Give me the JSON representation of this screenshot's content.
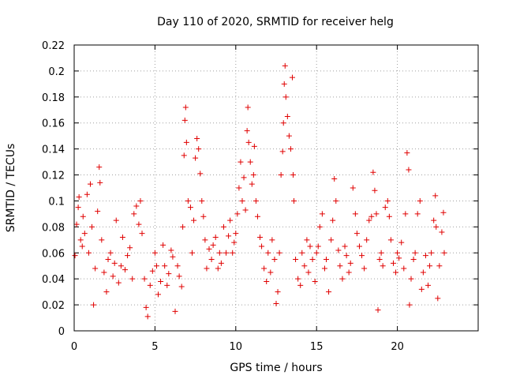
{
  "chart_data": {
    "type": "scatter",
    "title": "Day 110 of 2020, SRMTID for receiver helg",
    "xlabel": "GPS time / hours",
    "ylabel": "SRMTID / TECUs",
    "xlim": [
      0,
      25
    ],
    "ylim": [
      0,
      0.22
    ],
    "x_ticks": [
      0,
      5,
      10,
      15,
      20
    ],
    "x_tick_labels": [
      "0",
      "5",
      "10",
      "15",
      "20"
    ],
    "y_ticks": [
      0,
      0.02,
      0.04,
      0.06,
      0.08,
      0.1,
      0.12,
      0.14,
      0.16,
      0.18,
      0.2,
      0.22
    ],
    "y_tick_labels": [
      "0",
      "0.02",
      "0.04",
      "0.06",
      "0.08",
      "0.1",
      "0.12",
      "0.14",
      "0.16",
      "0.18",
      "0.2",
      "0.22"
    ],
    "grid": true,
    "marker": "+",
    "color": "#e00000",
    "series": [
      {
        "name": "SRMTID",
        "points": [
          [
            0.05,
            0.058
          ],
          [
            0.15,
            0.082
          ],
          [
            0.25,
            0.095
          ],
          [
            0.3,
            0.103
          ],
          [
            0.4,
            0.07
          ],
          [
            0.5,
            0.065
          ],
          [
            0.55,
            0.088
          ],
          [
            0.65,
            0.075
          ],
          [
            0.8,
            0.105
          ],
          [
            0.9,
            0.06
          ],
          [
            1.0,
            0.113
          ],
          [
            1.1,
            0.08
          ],
          [
            1.2,
            0.02
          ],
          [
            1.3,
            0.048
          ],
          [
            1.45,
            0.092
          ],
          [
            1.55,
            0.126
          ],
          [
            1.6,
            0.114
          ],
          [
            1.7,
            0.07
          ],
          [
            1.85,
            0.045
          ],
          [
            2.0,
            0.03
          ],
          [
            2.1,
            0.055
          ],
          [
            2.25,
            0.06
          ],
          [
            2.4,
            0.042
          ],
          [
            2.5,
            0.052
          ],
          [
            2.6,
            0.085
          ],
          [
            2.75,
            0.037
          ],
          [
            2.9,
            0.05
          ],
          [
            3.0,
            0.072
          ],
          [
            3.15,
            0.047
          ],
          [
            3.3,
            0.058
          ],
          [
            3.45,
            0.064
          ],
          [
            3.6,
            0.04
          ],
          [
            3.7,
            0.09
          ],
          [
            3.85,
            0.096
          ],
          [
            4.0,
            0.082
          ],
          [
            4.1,
            0.1
          ],
          [
            4.2,
            0.075
          ],
          [
            4.35,
            0.04
          ],
          [
            4.45,
            0.018
          ],
          [
            4.55,
            0.011
          ],
          [
            4.7,
            0.035
          ],
          [
            4.85,
            0.046
          ],
          [
            5.0,
            0.06
          ],
          [
            5.1,
            0.05
          ],
          [
            5.2,
            0.028
          ],
          [
            5.35,
            0.038
          ],
          [
            5.5,
            0.066
          ],
          [
            5.6,
            0.05
          ],
          [
            5.75,
            0.035
          ],
          [
            5.85,
            0.044
          ],
          [
            6.0,
            0.062
          ],
          [
            6.1,
            0.057
          ],
          [
            6.25,
            0.015
          ],
          [
            6.4,
            0.05
          ],
          [
            6.5,
            0.042
          ],
          [
            6.65,
            0.034
          ],
          [
            6.72,
            0.08
          ],
          [
            6.8,
            0.135
          ],
          [
            6.85,
            0.162
          ],
          [
            6.9,
            0.172
          ],
          [
            6.95,
            0.145
          ],
          [
            7.05,
            0.1
          ],
          [
            7.2,
            0.095
          ],
          [
            7.3,
            0.06
          ],
          [
            7.4,
            0.085
          ],
          [
            7.5,
            0.133
          ],
          [
            7.6,
            0.148
          ],
          [
            7.7,
            0.14
          ],
          [
            7.8,
            0.121
          ],
          [
            7.9,
            0.1
          ],
          [
            8.0,
            0.088
          ],
          [
            8.1,
            0.07
          ],
          [
            8.2,
            0.048
          ],
          [
            8.35,
            0.063
          ],
          [
            8.5,
            0.055
          ],
          [
            8.6,
            0.066
          ],
          [
            8.75,
            0.072
          ],
          [
            8.9,
            0.048
          ],
          [
            9.0,
            0.06
          ],
          [
            9.1,
            0.052
          ],
          [
            9.25,
            0.08
          ],
          [
            9.4,
            0.06
          ],
          [
            9.55,
            0.073
          ],
          [
            9.65,
            0.085
          ],
          [
            9.8,
            0.06
          ],
          [
            9.9,
            0.068
          ],
          [
            10.0,
            0.075
          ],
          [
            10.1,
            0.09
          ],
          [
            10.2,
            0.11
          ],
          [
            10.3,
            0.13
          ],
          [
            10.4,
            0.1
          ],
          [
            10.5,
            0.118
          ],
          [
            10.6,
            0.093
          ],
          [
            10.7,
            0.154
          ],
          [
            10.75,
            0.172
          ],
          [
            10.8,
            0.145
          ],
          [
            10.9,
            0.13
          ],
          [
            11.0,
            0.113
          ],
          [
            11.1,
            0.12
          ],
          [
            11.15,
            0.142
          ],
          [
            11.25,
            0.1
          ],
          [
            11.35,
            0.088
          ],
          [
            11.5,
            0.072
          ],
          [
            11.6,
            0.065
          ],
          [
            11.75,
            0.048
          ],
          [
            11.9,
            0.038
          ],
          [
            12.0,
            0.06
          ],
          [
            12.15,
            0.045
          ],
          [
            12.25,
            0.07
          ],
          [
            12.4,
            0.055
          ],
          [
            12.5,
            0.021
          ],
          [
            12.6,
            0.03
          ],
          [
            12.7,
            0.06
          ],
          [
            12.8,
            0.12
          ],
          [
            12.9,
            0.138
          ],
          [
            12.95,
            0.16
          ],
          [
            13.0,
            0.19
          ],
          [
            13.05,
            0.204
          ],
          [
            13.1,
            0.18
          ],
          [
            13.2,
            0.165
          ],
          [
            13.3,
            0.15
          ],
          [
            13.4,
            0.14
          ],
          [
            13.5,
            0.195
          ],
          [
            13.55,
            0.12
          ],
          [
            13.6,
            0.1
          ],
          [
            13.7,
            0.055
          ],
          [
            13.85,
            0.04
          ],
          [
            14.0,
            0.035
          ],
          [
            14.1,
            0.06
          ],
          [
            14.25,
            0.05
          ],
          [
            14.4,
            0.07
          ],
          [
            14.5,
            0.045
          ],
          [
            14.6,
            0.065
          ],
          [
            14.75,
            0.055
          ],
          [
            14.9,
            0.038
          ],
          [
            15.0,
            0.06
          ],
          [
            15.1,
            0.065
          ],
          [
            15.2,
            0.08
          ],
          [
            15.35,
            0.09
          ],
          [
            15.5,
            0.048
          ],
          [
            15.6,
            0.055
          ],
          [
            15.75,
            0.03
          ],
          [
            15.9,
            0.07
          ],
          [
            16.0,
            0.085
          ],
          [
            16.1,
            0.117
          ],
          [
            16.2,
            0.1
          ],
          [
            16.35,
            0.062
          ],
          [
            16.45,
            0.05
          ],
          [
            16.6,
            0.04
          ],
          [
            16.75,
            0.065
          ],
          [
            16.85,
            0.058
          ],
          [
            17.0,
            0.045
          ],
          [
            17.1,
            0.052
          ],
          [
            17.25,
            0.11
          ],
          [
            17.4,
            0.09
          ],
          [
            17.5,
            0.075
          ],
          [
            17.65,
            0.065
          ],
          [
            17.8,
            0.058
          ],
          [
            17.95,
            0.048
          ],
          [
            18.1,
            0.07
          ],
          [
            18.25,
            0.085
          ],
          [
            18.4,
            0.088
          ],
          [
            18.5,
            0.122
          ],
          [
            18.6,
            0.108
          ],
          [
            18.7,
            0.09
          ],
          [
            18.8,
            0.016
          ],
          [
            18.9,
            0.055
          ],
          [
            19.0,
            0.06
          ],
          [
            19.1,
            0.05
          ],
          [
            19.25,
            0.095
          ],
          [
            19.4,
            0.1
          ],
          [
            19.5,
            0.088
          ],
          [
            19.6,
            0.07
          ],
          [
            19.75,
            0.052
          ],
          [
            19.9,
            0.045
          ],
          [
            20.0,
            0.06
          ],
          [
            20.1,
            0.056
          ],
          [
            20.25,
            0.068
          ],
          [
            20.4,
            0.048
          ],
          [
            20.5,
            0.09
          ],
          [
            20.6,
            0.137
          ],
          [
            20.7,
            0.124
          ],
          [
            20.75,
            0.02
          ],
          [
            20.85,
            0.04
          ],
          [
            21.0,
            0.055
          ],
          [
            21.1,
            0.06
          ],
          [
            21.25,
            0.09
          ],
          [
            21.4,
            0.1
          ],
          [
            21.5,
            0.032
          ],
          [
            21.6,
            0.045
          ],
          [
            21.75,
            0.058
          ],
          [
            21.9,
            0.035
          ],
          [
            22.0,
            0.05
          ],
          [
            22.1,
            0.06
          ],
          [
            22.25,
            0.085
          ],
          [
            22.35,
            0.104
          ],
          [
            22.4,
            0.08
          ],
          [
            22.5,
            0.025
          ],
          [
            22.6,
            0.05
          ],
          [
            22.75,
            0.076
          ],
          [
            22.85,
            0.091
          ],
          [
            22.9,
            0.06
          ]
        ]
      }
    ]
  }
}
